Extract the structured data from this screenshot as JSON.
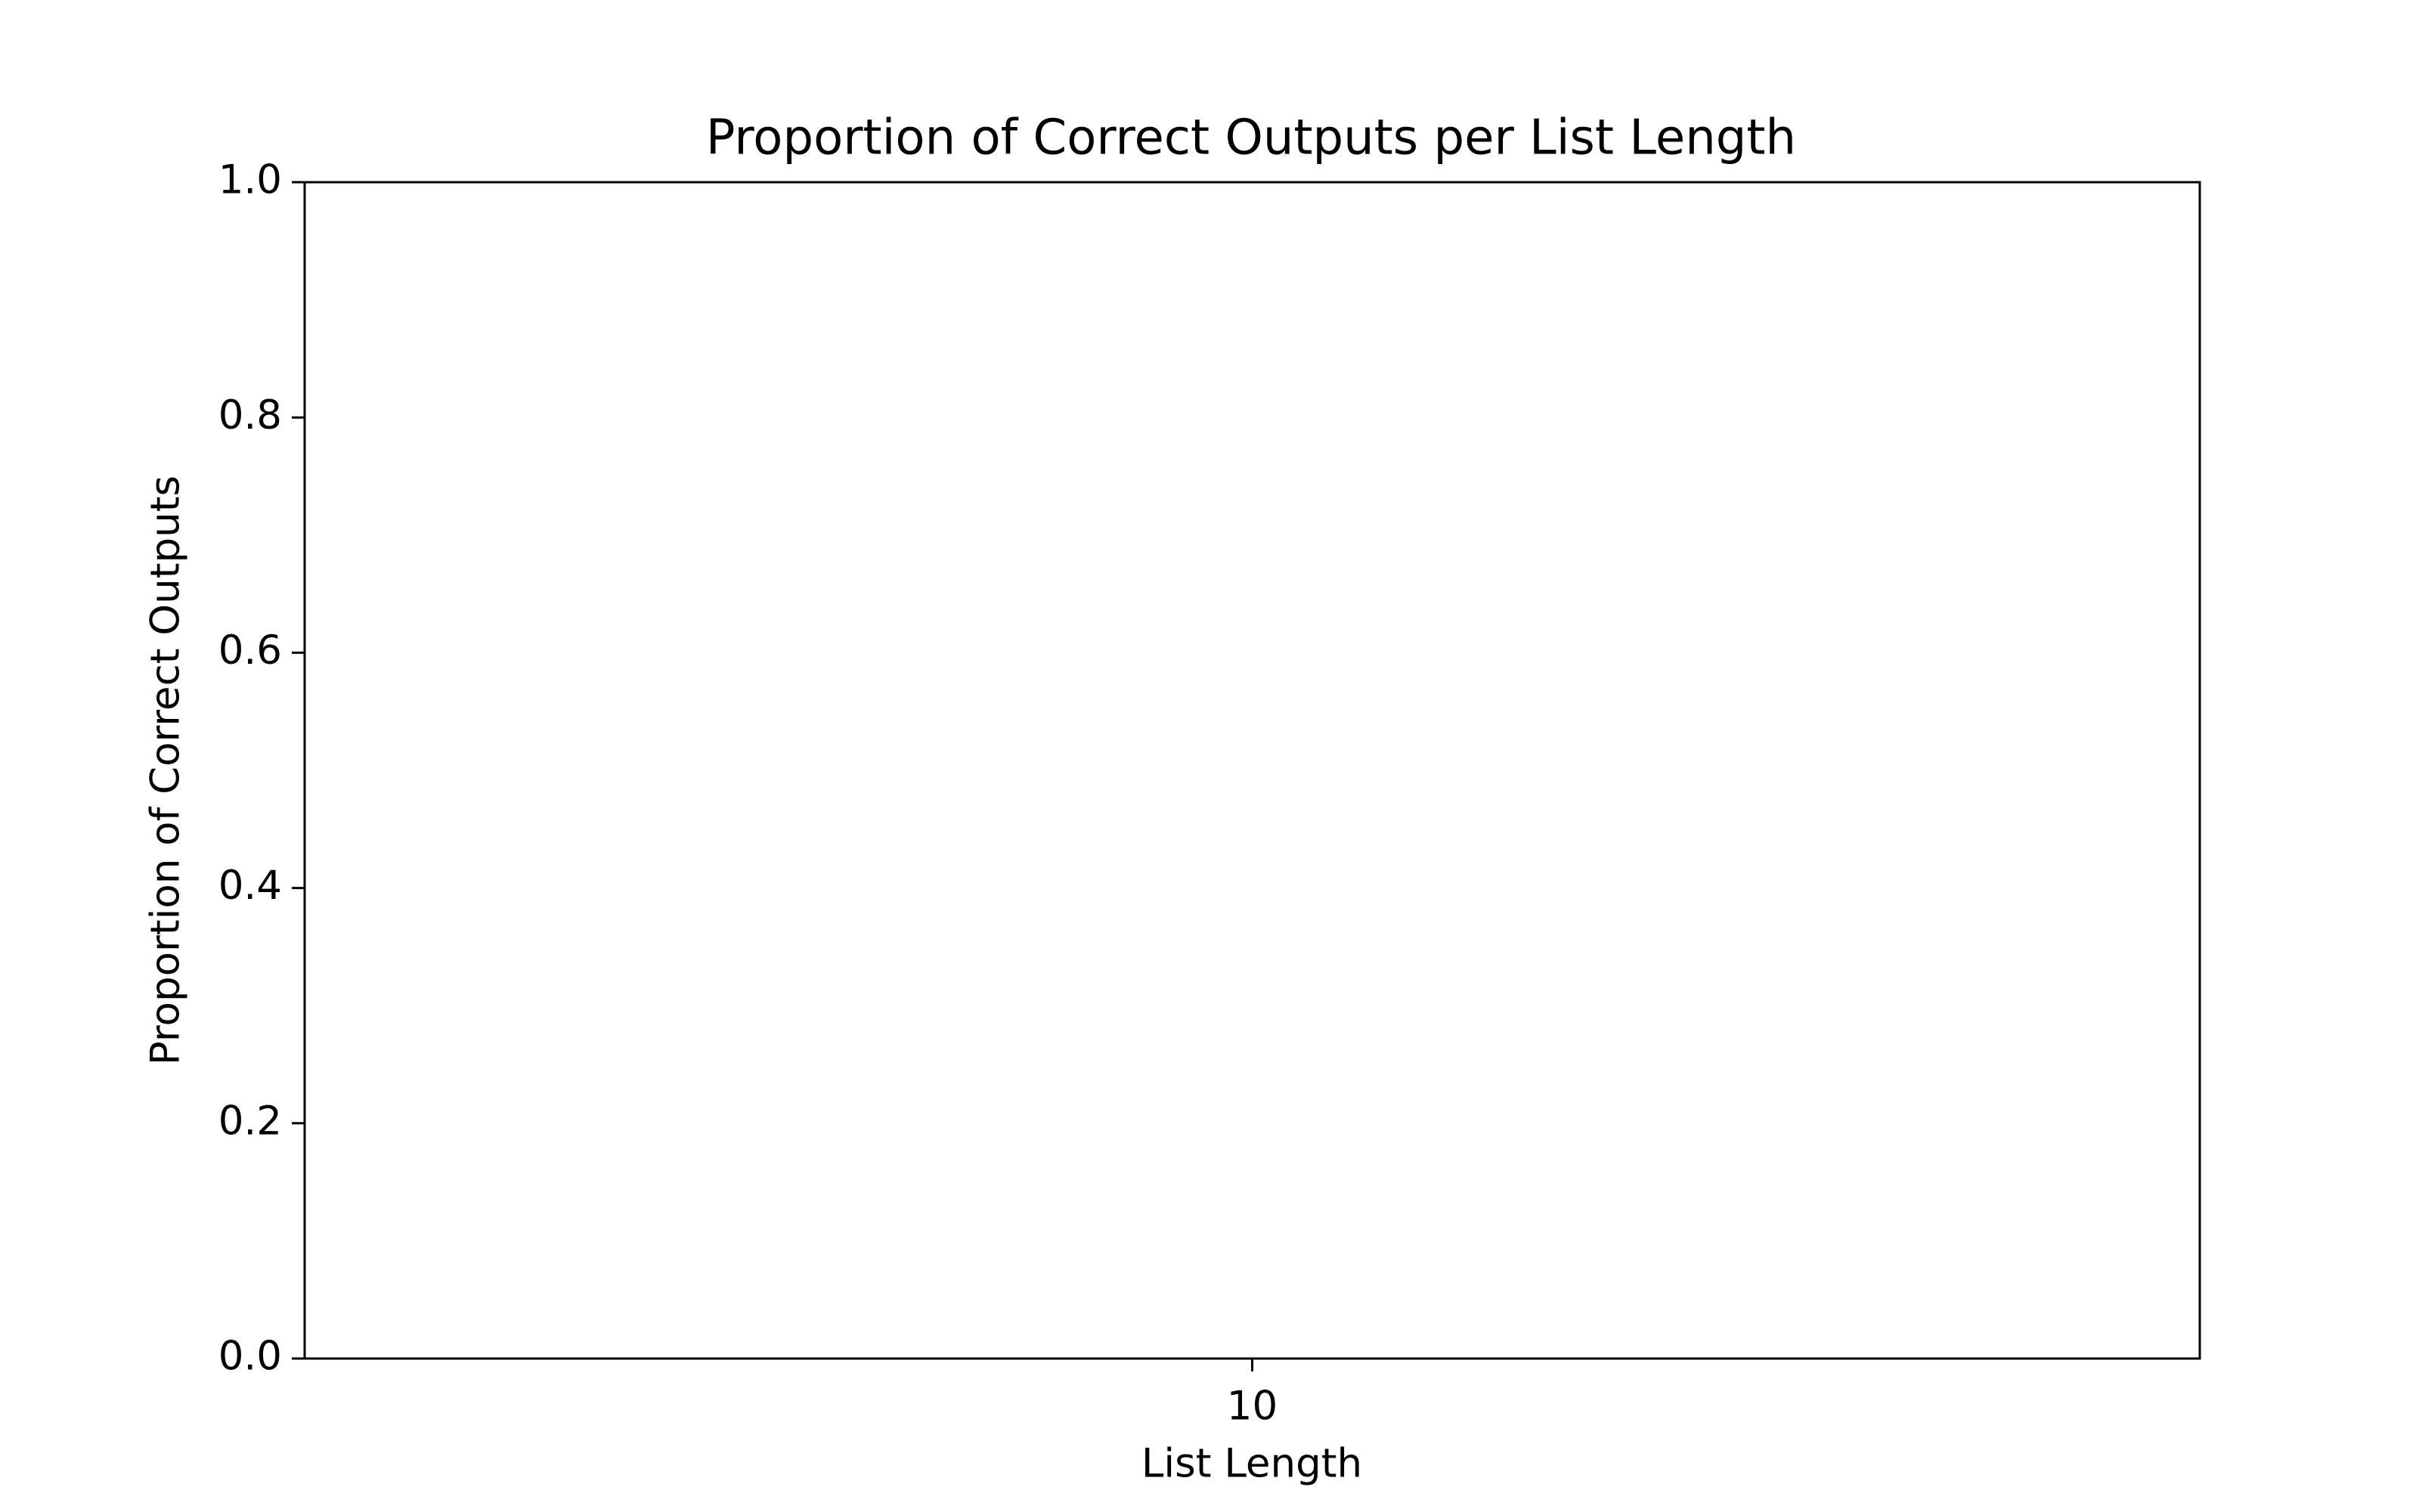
{
  "chart_data": {
    "type": "bar",
    "title": "Proportion of Correct Outputs per List Length",
    "xlabel": "List Length",
    "ylabel": "Proportion of Correct Outputs",
    "categories": [
      "10"
    ],
    "values": [
      0.0
    ],
    "ylim": [
      0.0,
      1.0
    ],
    "yticks": [
      "0.0",
      "0.2",
      "0.4",
      "0.6",
      "0.8",
      "1.0"
    ],
    "grid": false,
    "legend": "none"
  }
}
